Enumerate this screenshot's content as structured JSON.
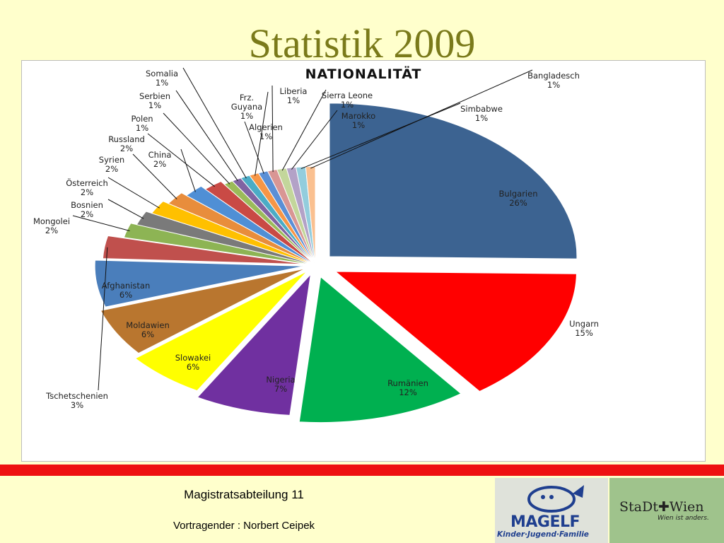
{
  "slide": {
    "title": "Statistik 2009",
    "footer_department": "Magistratsabteilung 11",
    "footer_speaker": "Vortragender : Norbert Ceipek",
    "logo_magelf_text": "MAGELF",
    "logo_magelf_subtitle": "Kinder·Jugend·Familie",
    "logo_stadt_text": "StaDt✚Wien",
    "logo_stadt_subtitle": "Wien ist anders."
  },
  "chart_data": {
    "type": "pie",
    "title": "NATIONALITÄT",
    "legend": "none",
    "slices": [
      {
        "label": "Bulgarien",
        "percent_label": "26%",
        "value": 26,
        "color": "#3c6391"
      },
      {
        "label": "Ungarn",
        "percent_label": "15%",
        "value": 15,
        "color": "#ff0000"
      },
      {
        "label": "Rumänien",
        "percent_label": "12%",
        "value": 12,
        "color": "#00b050"
      },
      {
        "label": "Nigeria",
        "percent_label": "7%",
        "value": 7,
        "color": "#7030a0"
      },
      {
        "label": "Slowakei",
        "percent_label": "6%",
        "value": 6,
        "color": "#ffff00"
      },
      {
        "label": "Moldawien",
        "percent_label": "6%",
        "value": 6,
        "color": "#b9762f"
      },
      {
        "label": "Afghanistan",
        "percent_label": "6%",
        "value": 6,
        "color": "#4a7ebb"
      },
      {
        "label": "Tschetschenien",
        "percent_label": "3%",
        "value": 3,
        "color": "#c0504d"
      },
      {
        "label": "Mongolei",
        "percent_label": "2%",
        "value": 2,
        "color": "#8db454"
      },
      {
        "label": "Bosnien",
        "percent_label": "2%",
        "value": 2,
        "color": "#7a7a7a"
      },
      {
        "label": "Österreich",
        "percent_label": "2%",
        "value": 2,
        "color": "#ffc000"
      },
      {
        "label": "Syrien",
        "percent_label": "2%",
        "value": 2,
        "color": "#e88d3c"
      },
      {
        "label": "China",
        "percent_label": "2%",
        "value": 2,
        "color": "#4f8fd5"
      },
      {
        "label": "Russland",
        "percent_label": "2%",
        "value": 2,
        "color": "#c94a45"
      },
      {
        "label": "Polen",
        "percent_label": "1%",
        "value": 1,
        "color": "#9bbb59"
      },
      {
        "label": "Serbien",
        "percent_label": "1%",
        "value": 1,
        "color": "#8064a2"
      },
      {
        "label": "Somalia",
        "percent_label": "1%",
        "value": 1,
        "color": "#4bacc6"
      },
      {
        "label": "Frz. Guyana",
        "percent_label": "1%",
        "value": 1,
        "color": "#f79646"
      },
      {
        "label": "Algerien",
        "percent_label": "1%",
        "value": 1,
        "color": "#5b8fd6"
      },
      {
        "label": "Liberia",
        "percent_label": "1%",
        "value": 1,
        "color": "#d99694"
      },
      {
        "label": "Sierra Leone",
        "percent_label": "1%",
        "value": 1,
        "color": "#c3d69b"
      },
      {
        "label": "Marokko",
        "percent_label": "1%",
        "value": 1,
        "color": "#b3a2c7"
      },
      {
        "label": "Simbabwe",
        "percent_label": "1%",
        "value": 1,
        "color": "#93cddd"
      },
      {
        "label": "Bangladesch",
        "percent_label": "1%",
        "value": 1,
        "color": "#fac090"
      }
    ]
  }
}
